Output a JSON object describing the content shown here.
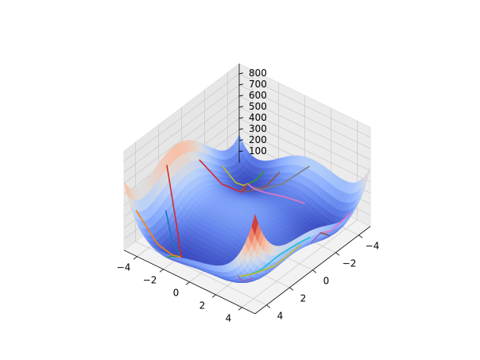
{
  "chart_data": {
    "type": "surface",
    "title": "",
    "xlabel": "",
    "ylabel": "",
    "zlabel": "",
    "surface_function": "Himmelblau: (x^2 + y - 11)^2 + (x + y^2 - 7)^2",
    "colormap": "coolwarm",
    "x_range": [
      -5,
      5
    ],
    "y_range": [
      -5,
      5
    ],
    "z_range": [
      0,
      890
    ],
    "x_ticks": [
      -4,
      -2,
      0,
      2,
      4
    ],
    "y_ticks": [
      -4,
      -2,
      0,
      2,
      4
    ],
    "z_ticks": [
      100,
      200,
      300,
      400,
      500,
      600,
      700,
      800
    ],
    "x_tick_labels": [
      "−4",
      "−2",
      "0",
      "2",
      "4"
    ],
    "y_tick_labels": [
      "−4",
      "−2",
      "0",
      "2",
      "4"
    ],
    "z_tick_labels": [
      "100",
      "200",
      "300",
      "400",
      "500",
      "600",
      "700",
      "800"
    ],
    "grid": true,
    "legend": "none",
    "trajectories": [
      {
        "color": "#d62728",
        "points": [
          [
            -1.0,
            -4.5
          ],
          [
            -1.8,
            -3.5
          ],
          [
            -2.5,
            -2.6
          ],
          [
            -3.0,
            -2.9
          ],
          [
            -3.3,
            -3.1
          ],
          [
            -3.55,
            -3.2
          ],
          [
            -3.78,
            -3.28
          ]
        ]
      },
      {
        "color": "#2ca02c",
        "points": [
          [
            4.6,
            -2.0
          ],
          [
            4.2,
            -2.3
          ],
          [
            3.9,
            -2.3
          ],
          [
            3.7,
            -2.1
          ],
          [
            3.6,
            -1.95
          ],
          [
            3.58,
            -1.85
          ]
        ]
      },
      {
        "color": "#17becf",
        "points": [
          [
            -2.0,
            3.0
          ],
          [
            -0.8,
            3.1
          ],
          [
            0.6,
            3.0
          ],
          [
            2.0,
            2.8
          ],
          [
            2.6,
            2.4
          ],
          [
            2.9,
            2.1
          ],
          [
            3.0,
            2.0
          ]
        ]
      },
      {
        "color": "#bcbd22",
        "points": [
          [
            -3.0,
            -4.5
          ],
          [
            -3.2,
            -3.7
          ],
          [
            -3.45,
            -3.35
          ],
          [
            -3.7,
            -3.3
          ],
          [
            -3.78,
            -3.28
          ]
        ]
      },
      {
        "color": "#8c564b",
        "points": [
          [
            -4.5,
            -1.5
          ],
          [
            -3.8,
            -1.9
          ],
          [
            -3.0,
            -2.6
          ],
          [
            -2.9,
            -3.0
          ],
          [
            -3.5,
            -3.2
          ],
          [
            -3.78,
            -3.28
          ]
        ]
      },
      {
        "color": "#9467bd",
        "points": [
          [
            -1.5,
            3.6
          ],
          [
            -2.2,
            3.3
          ],
          [
            -2.7,
            3.15
          ],
          [
            -2.8,
            3.13
          ]
        ]
      },
      {
        "color": "#e377c2",
        "points": [
          [
            -4.0,
            4.4
          ],
          [
            -3.2,
            3.6
          ],
          [
            -2.9,
            3.2
          ],
          [
            -2.8,
            3.13
          ]
        ]
      },
      {
        "color": "#ff7f0e",
        "points": [
          [
            4.5,
            -4.5
          ],
          [
            4.0,
            -3.3
          ],
          [
            3.8,
            -2.4
          ],
          [
            3.6,
            -1.9
          ],
          [
            3.58,
            -1.85
          ]
        ]
      },
      {
        "color": "#7f7f7f",
        "points": [
          [
            -4.8,
            0.5
          ],
          [
            -4.0,
            -0.8
          ],
          [
            -3.5,
            -2.0
          ],
          [
            -3.65,
            -2.9
          ],
          [
            -3.78,
            -3.28
          ]
        ]
      },
      {
        "color": "#1f77b4",
        "points": [
          [
            2.5,
            -4.0
          ],
          [
            3.1,
            -3.0
          ],
          [
            3.4,
            -2.3
          ],
          [
            3.58,
            -1.85
          ]
        ]
      },
      {
        "color": "#d62728",
        "points": [
          [
            1.5,
            -4.8
          ],
          [
            2.6,
            -3.0
          ],
          [
            3.3,
            -2.2
          ],
          [
            3.58,
            -1.85
          ]
        ]
      },
      {
        "color": "#8c564b",
        "points": [
          [
            -2.2,
            4.3
          ],
          [
            -2.8,
            3.7
          ],
          [
            -2.85,
            3.3
          ],
          [
            -2.8,
            3.13
          ]
        ]
      },
      {
        "color": "#2ca02c",
        "points": [
          [
            -4.6,
            -2.8
          ],
          [
            -4.2,
            -3.0
          ],
          [
            -3.9,
            -3.2
          ],
          [
            -3.78,
            -3.28
          ]
        ]
      },
      {
        "color": "#bcbd22",
        "points": [
          [
            0.5,
            4.5
          ],
          [
            1.6,
            3.5
          ],
          [
            2.5,
            2.5
          ],
          [
            3.0,
            2.0
          ]
        ]
      },
      {
        "color": "#e377c2",
        "points": [
          [
            -3.6,
            1.2
          ],
          [
            -3.3,
            0.0
          ],
          [
            -3.2,
            -1.4
          ],
          [
            -3.5,
            -2.6
          ],
          [
            -3.78,
            -3.28
          ]
        ]
      },
      {
        "color": "#9467bd",
        "points": [
          [
            3.6,
            3.6
          ],
          [
            3.3,
            2.6
          ],
          [
            3.1,
            2.1
          ],
          [
            3.0,
            2.0
          ]
        ]
      }
    ]
  }
}
